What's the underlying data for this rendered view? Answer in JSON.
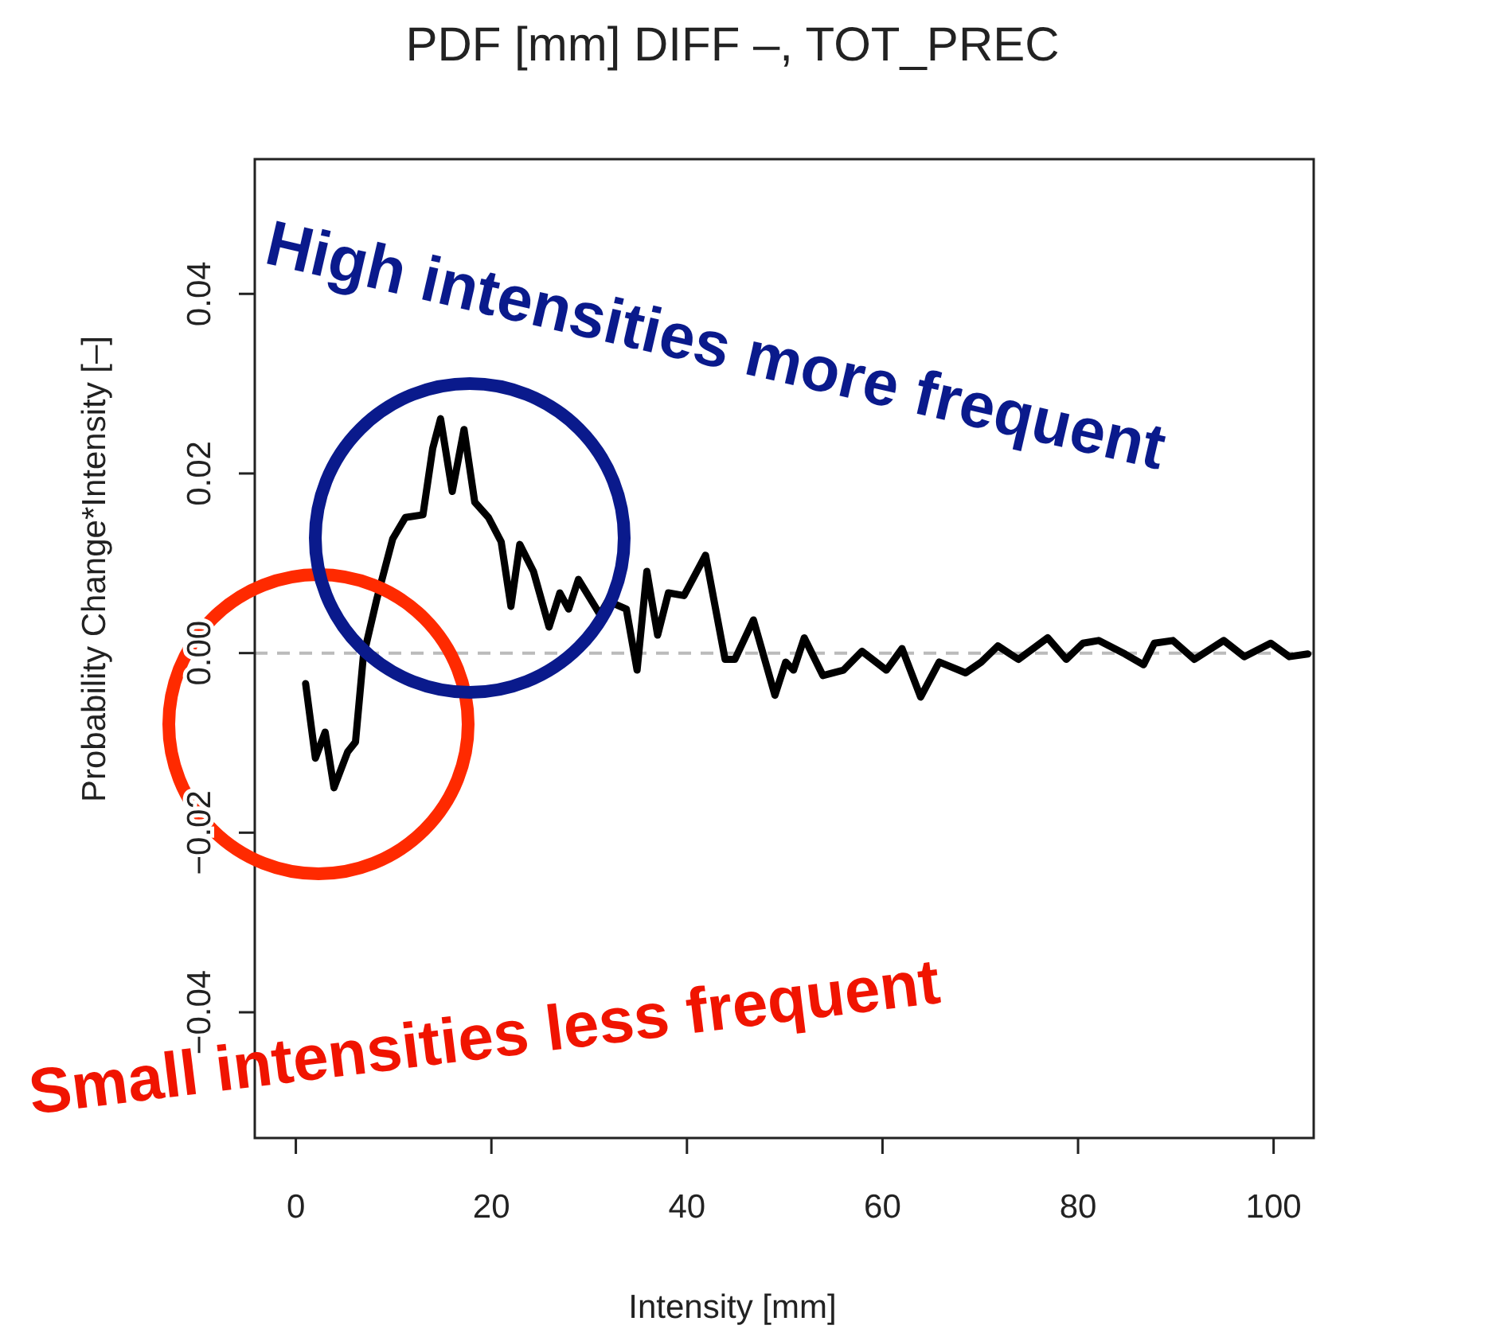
{
  "chart_data": {
    "type": "line",
    "title": "PDF [mm] DIFF –, TOT_PREC",
    "xlabel": "Intensity [mm]",
    "ylabel": "Probability Change*Intensity [–]",
    "xlim": [
      -4.2,
      104.1
    ],
    "ylim": [
      -0.054,
      0.055
    ],
    "xticks": [
      0,
      20,
      40,
      60,
      80,
      100
    ],
    "yticks": [
      {
        "value": -0.04,
        "label": "−0.04"
      },
      {
        "value": -0.02,
        "label": "−0.02"
      },
      {
        "value": 0,
        "label": "0.00"
      },
      {
        "value": 0.02,
        "label": "0.02"
      },
      {
        "value": 0.04,
        "label": "0.04"
      }
    ],
    "grid": false,
    "marker": "none",
    "line_style": "solid",
    "ref_lines": [
      {
        "axis": "y",
        "value": 0,
        "color": "#bbbbbb",
        "line_style": "dashed"
      }
    ],
    "annotations": [
      "High intensities more frequent",
      "Small intensities less frequent"
    ],
    "series": [
      {
        "color": "#000000",
        "x": [
          1.0,
          2.0,
          3.0,
          3.9,
          5.3,
          6.1,
          6.9,
          8.3,
          9.9,
          11.2,
          13.0,
          14.0,
          14.8,
          16.0,
          17.2,
          18.3,
          19.7,
          21.0,
          22.0,
          22.9,
          24.3,
          25.9,
          27.0,
          27.9,
          28.9,
          31.1,
          31.9,
          33.8,
          34.9,
          35.9,
          37.0,
          38.1,
          39.7,
          41.9,
          43.9,
          44.9,
          46.8,
          49.0,
          50.1,
          50.9,
          52.0,
          53.9,
          56.0,
          57.9,
          60.4,
          62.0,
          63.9,
          65.8,
          68.5,
          70.1,
          71.8,
          73.9,
          76.9,
          78.8,
          80.5,
          82.1,
          84.8,
          86.7,
          87.8,
          89.7,
          91.9,
          94.9,
          97.0,
          99.7,
          101.6,
          103.5
        ],
        "values": [
          -0.0034,
          -0.0117,
          -0.0088,
          -0.015,
          -0.011,
          -0.0099,
          -0.0004,
          0.0061,
          0.0127,
          0.0151,
          0.0154,
          0.0228,
          0.0261,
          0.018,
          0.0249,
          0.0168,
          0.0151,
          0.0124,
          0.0052,
          0.0121,
          0.0091,
          0.0029,
          0.0067,
          0.0049,
          0.0082,
          0.0043,
          0.0058,
          0.0049,
          -0.0019,
          0.0091,
          0.002,
          0.0067,
          0.0064,
          0.0109,
          -0.0007,
          -0.0007,
          0.0037,
          -0.0047,
          -0.001,
          -0.0019,
          0.0017,
          -0.0025,
          -0.0019,
          0.0002,
          -0.0019,
          0.0005,
          -0.0049,
          -0.001,
          -0.0022,
          -0.001,
          0.0008,
          -0.0007,
          0.0017,
          -0.0007,
          0.0011,
          0.0014,
          -0.0001,
          -0.0013,
          0.0011,
          0.0014,
          -0.0007,
          0.0014,
          -0.0004,
          0.0011,
          -0.0004,
          -0.0001
        ]
      }
    ]
  }
}
